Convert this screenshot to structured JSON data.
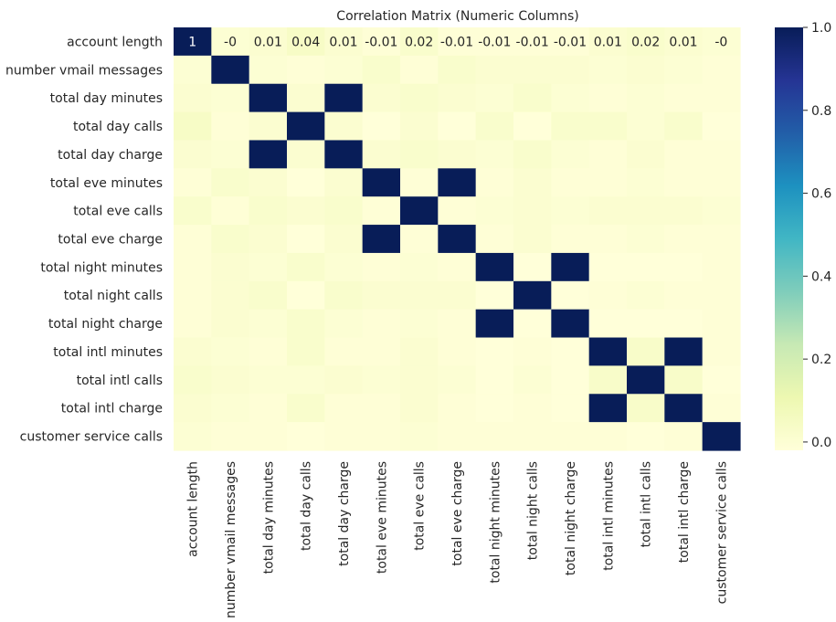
{
  "chart_data": {
    "type": "heatmap",
    "title": "Correlation Matrix (Numeric Columns)",
    "xlabel": "",
    "ylabel": "",
    "rows": [
      "account length",
      "number vmail messages",
      "total day minutes",
      "total day calls",
      "total day charge",
      "total eve minutes",
      "total eve calls",
      "total eve charge",
      "total night minutes",
      "total night calls",
      "total night charge",
      "total intl minutes",
      "total intl calls",
      "total intl charge",
      "customer service calls"
    ],
    "columns": [
      "account length",
      "number vmail messages",
      "total day minutes",
      "total day calls",
      "total day charge",
      "total eve minutes",
      "total eve calls",
      "total eve charge",
      "total night minutes",
      "total night calls",
      "total night charge",
      "total intl minutes",
      "total intl calls",
      "total intl charge",
      "customer service calls"
    ],
    "values": [
      [
        1,
        -0.0,
        0.01,
        0.04,
        0.01,
        -0.01,
        0.02,
        -0.01,
        -0.01,
        -0.01,
        -0.01,
        0.01,
        0.02,
        0.01,
        -0.0
      ],
      [
        -0.0,
        1,
        0.0,
        -0.01,
        0.0,
        0.02,
        -0.01,
        0.02,
        0.01,
        0.01,
        0.01,
        0.0,
        0.01,
        0.0,
        -0.01
      ],
      [
        0.01,
        0.0,
        1,
        0.01,
        1,
        0.01,
        0.02,
        0.01,
        0.0,
        0.02,
        0.0,
        -0.01,
        0.0,
        -0.01,
        -0.01
      ],
      [
        0.04,
        -0.01,
        0.01,
        1,
        0.01,
        -0.02,
        0.01,
        -0.02,
        0.02,
        -0.02,
        0.02,
        0.02,
        0.0,
        0.02,
        -0.02
      ],
      [
        0.01,
        0.0,
        1,
        0.01,
        1,
        0.01,
        0.02,
        0.01,
        0.0,
        0.02,
        0.0,
        -0.01,
        0.01,
        -0.01,
        -0.01
      ],
      [
        -0.01,
        0.02,
        0.01,
        -0.02,
        0.01,
        1,
        -0.01,
        1,
        -0.01,
        0.01,
        -0.01,
        -0.01,
        0.0,
        -0.01,
        -0.01
      ],
      [
        0.02,
        -0.01,
        0.02,
        0.01,
        0.02,
        -0.01,
        1,
        -0.01,
        0.0,
        0.01,
        0.0,
        0.01,
        0.01,
        0.01,
        0.0
      ],
      [
        -0.01,
        0.02,
        0.01,
        -0.02,
        0.01,
        1,
        -0.01,
        1,
        -0.01,
        0.01,
        -0.01,
        -0.01,
        0.0,
        -0.01,
        -0.01
      ],
      [
        -0.01,
        0.01,
        0.0,
        0.02,
        0.0,
        -0.01,
        0.0,
        -0.01,
        1,
        -0.02,
        1,
        -0.02,
        -0.02,
        -0.02,
        -0.01
      ],
      [
        -0.01,
        0.01,
        0.02,
        -0.02,
        0.02,
        0.01,
        0.01,
        0.01,
        -0.02,
        1,
        -0.02,
        -0.01,
        0.0,
        -0.01,
        -0.01
      ],
      [
        -0.01,
        0.01,
        0.0,
        0.02,
        0.0,
        -0.01,
        0.0,
        -0.01,
        1,
        -0.02,
        1,
        -0.02,
        -0.02,
        -0.02,
        -0.01
      ],
      [
        0.01,
        0.0,
        -0.01,
        0.02,
        -0.01,
        -0.01,
        0.01,
        -0.01,
        -0.02,
        -0.01,
        -0.02,
        1,
        0.03,
        1,
        -0.01
      ],
      [
        0.02,
        0.01,
        0.0,
        0.0,
        0.01,
        0.0,
        0.01,
        0.0,
        -0.02,
        0.0,
        -0.02,
        0.03,
        1,
        0.03,
        -0.02
      ],
      [
        0.01,
        0.0,
        -0.01,
        0.02,
        -0.01,
        -0.01,
        0.01,
        -0.01,
        -0.02,
        -0.01,
        -0.02,
        1,
        0.03,
        1,
        -0.01
      ],
      [
        -0.0,
        -0.01,
        -0.01,
        -0.02,
        -0.01,
        -0.01,
        0.0,
        -0.01,
        -0.01,
        -0.01,
        -0.01,
        -0.01,
        -0.02,
        -0.01,
        1
      ]
    ],
    "annotations_row0": [
      "1",
      "-0",
      "0.01",
      "0.04",
      "0.01",
      "-0.01",
      "0.02",
      "-0.01",
      "-0.01",
      "-0.01",
      "-0.01",
      "0.01",
      "0.02",
      "0.01",
      "-0"
    ],
    "colorbar": {
      "range": [
        -0.02,
        1.0
      ],
      "ticks": [
        0.0,
        0.2,
        0.4,
        0.6,
        0.8,
        1.0
      ],
      "tick_labels": [
        "0.0",
        "0.2",
        "0.4",
        "0.6",
        "0.8",
        "1.0"
      ],
      "colormap": "YlGnBu",
      "colors": [
        "#ffffd9",
        "#edf8b1",
        "#c7e9b4",
        "#7fcdbb",
        "#41b6c4",
        "#1d91c0",
        "#225ea8",
        "#253494",
        "#081d58"
      ]
    },
    "grid": false,
    "legend": "colorbar-right"
  }
}
